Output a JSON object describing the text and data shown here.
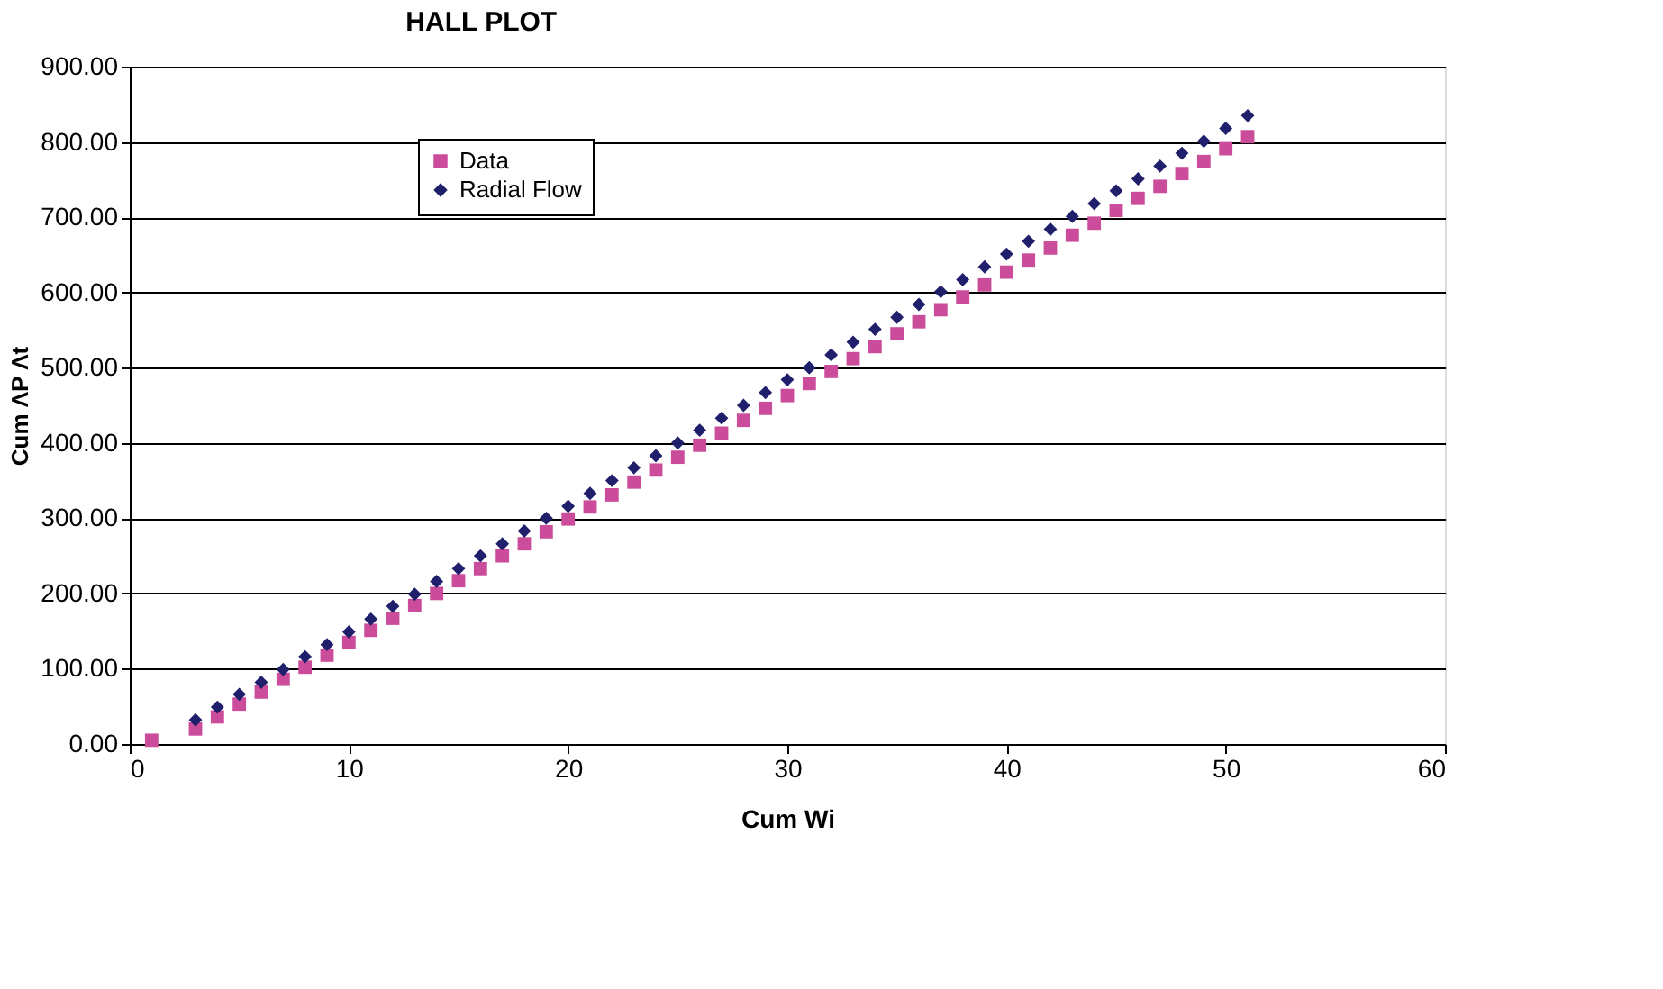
{
  "chart_data": {
    "type": "scatter",
    "title": "HALL PLOT",
    "xlabel": "Cum Wi",
    "ylabel": "Cum ΛP Λt",
    "xlim": [
      0,
      60
    ],
    "xticks": [
      0,
      10,
      20,
      30,
      40,
      50,
      60
    ],
    "ylim": [
      0,
      900
    ],
    "yticks": [
      {
        "value": 0,
        "label": "0.00"
      },
      {
        "value": 100,
        "label": "100.00"
      },
      {
        "value": 200,
        "label": "200.00"
      },
      {
        "value": 300,
        "label": "300.00"
      },
      {
        "value": 400,
        "label": "400.00"
      },
      {
        "value": 500,
        "label": "500.00"
      },
      {
        "value": 600,
        "label": "600.00"
      },
      {
        "value": 700,
        "label": "700.00"
      },
      {
        "value": 800,
        "label": "800.00"
      },
      {
        "value": 900,
        "label": "900.00"
      }
    ],
    "grid": "y",
    "legend": "top left",
    "series": [
      {
        "name": "Data",
        "color": "#cc4c9c",
        "marker": "square",
        "x": [
          1,
          3,
          4,
          5,
          6,
          7,
          8,
          9,
          10,
          11,
          12,
          13,
          14,
          15,
          16,
          17,
          18,
          19,
          20,
          21,
          22,
          23,
          24,
          25,
          26,
          27,
          28,
          29,
          30,
          31,
          32,
          33,
          34,
          35,
          36,
          37,
          38,
          39,
          40,
          41,
          42,
          43,
          44,
          45,
          46,
          47,
          48,
          49,
          50,
          51
        ],
        "values": [
          5,
          20,
          36,
          53,
          69,
          86,
          102,
          118,
          135,
          151,
          167,
          184,
          200,
          217,
          233,
          250,
          266,
          282,
          299,
          315,
          331,
          348,
          364,
          381,
          397,
          413,
          430,
          446,
          463,
          479,
          495,
          512,
          528,
          545,
          561,
          577,
          594,
          610,
          627,
          643,
          659,
          676,
          692,
          709,
          725,
          741,
          758,
          774,
          791,
          807
        ]
      },
      {
        "name": "Radial Flow",
        "color": "#1f1f6b",
        "marker": "diamond",
        "x": [
          3,
          4,
          5,
          6,
          7,
          8,
          9,
          10,
          11,
          12,
          13,
          14,
          15,
          16,
          17,
          18,
          19,
          20,
          21,
          22,
          23,
          24,
          25,
          26,
          27,
          28,
          29,
          30,
          31,
          32,
          33,
          34,
          35,
          36,
          37,
          38,
          39,
          40,
          41,
          42,
          43,
          44,
          45,
          46,
          47,
          48,
          49,
          50,
          51
        ],
        "values": [
          32,
          49,
          66,
          82,
          99,
          116,
          132,
          149,
          166,
          183,
          199,
          216,
          233,
          250,
          266,
          283,
          300,
          316,
          333,
          350,
          367,
          383,
          400,
          417,
          433,
          450,
          467,
          484,
          500,
          517,
          534,
          551,
          567,
          584,
          601,
          617,
          634,
          651,
          668,
          684,
          701,
          718,
          735,
          751,
          768,
          785,
          801,
          818,
          835
        ]
      }
    ]
  }
}
